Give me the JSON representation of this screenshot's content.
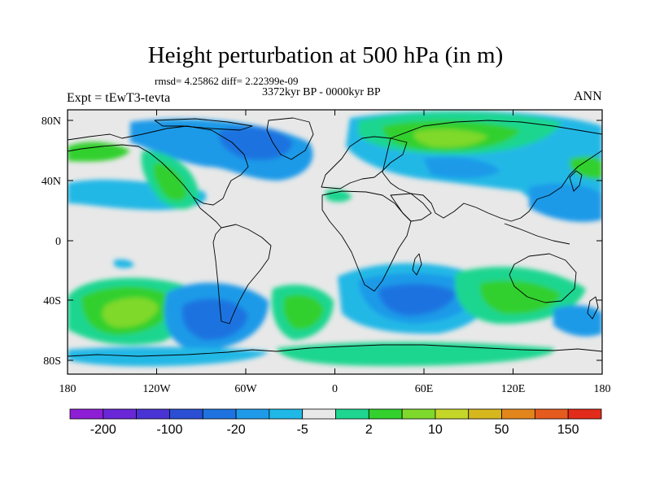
{
  "figure": {
    "title": "Height perturbation at 500 hPa (in m)",
    "stats": "rmsd= 4.25862 diff= 2.22399e-09",
    "period": "3372kyr BP - 0000kyr BP",
    "experiment": "Expt = tEwT3-tevta",
    "season": "ANN"
  },
  "map": {
    "x_ticks": [
      "180",
      "120W",
      "60W",
      "0",
      "60E",
      "120E",
      "180"
    ],
    "y_ticks": [
      "80N",
      "40N",
      "0",
      "40S",
      "80S"
    ],
    "land_color": "#e8e8e8"
  },
  "colorbar": {
    "labels": [
      "-200",
      "-100",
      "-20",
      "-5",
      "2",
      "10",
      "50",
      "150"
    ],
    "colors": [
      "#8e1ed6",
      "#6a27d8",
      "#4a33d4",
      "#2a4fd3",
      "#1f73e0",
      "#1e9ae8",
      "#20b8e6",
      "#e8e8e8",
      "#1ed690",
      "#33d02e",
      "#7fd92c",
      "#c4d628",
      "#d6b81e",
      "#e2861c",
      "#e55a1d",
      "#e22b1a"
    ]
  }
}
